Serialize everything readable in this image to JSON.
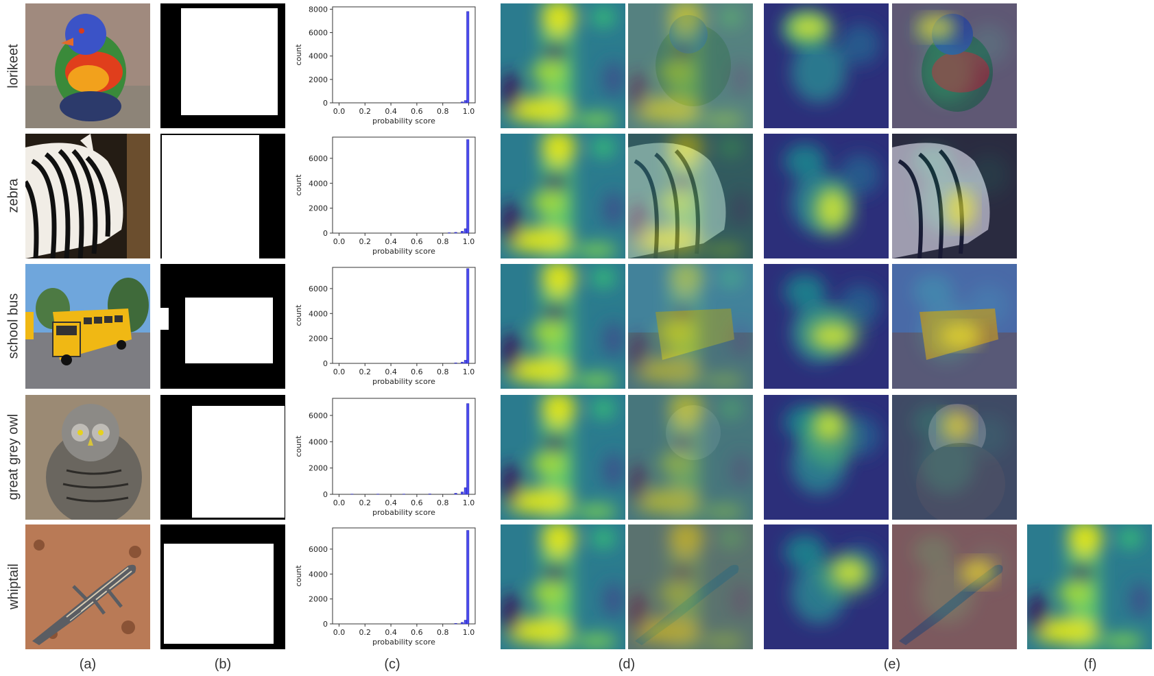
{
  "rows": [
    {
      "label": "lorikeet"
    },
    {
      "label": "zebra"
    },
    {
      "label": "school bus"
    },
    {
      "label": "great grey owl"
    },
    {
      "label": "whiptail"
    }
  ],
  "column_labels": [
    "(a)",
    "(b)",
    "(c)",
    "(d)",
    "(e)",
    "(f)"
  ],
  "chart_data": [
    {
      "type": "bar",
      "xlabel": "probability score",
      "ylabel": "count",
      "xticks": [
        "0.0",
        "0.2",
        "0.4",
        "0.6",
        "0.8",
        "1.0"
      ],
      "yticks": [
        "0",
        "2000",
        "4000",
        "6000",
        "8000"
      ],
      "ylim": [
        0,
        8200
      ],
      "bins": [
        {
          "x": 0.95,
          "value": 80
        },
        {
          "x": 0.975,
          "value": 200
        },
        {
          "x": 0.993,
          "value": 7800
        }
      ]
    },
    {
      "type": "bar",
      "xlabel": "probability score",
      "ylabel": "count",
      "xticks": [
        "0.0",
        "0.2",
        "0.4",
        "0.6",
        "0.8",
        "1.0"
      ],
      "yticks": [
        "0",
        "2000",
        "4000",
        "6000"
      ],
      "ylim": [
        0,
        7700
      ],
      "bins": [
        {
          "x": 0.85,
          "value": 30
        },
        {
          "x": 0.9,
          "value": 60
        },
        {
          "x": 0.95,
          "value": 150
        },
        {
          "x": 0.975,
          "value": 350
        },
        {
          "x": 0.993,
          "value": 7500
        }
      ]
    },
    {
      "type": "bar",
      "xlabel": "probability score",
      "ylabel": "count",
      "xticks": [
        "0.0",
        "0.2",
        "0.4",
        "0.6",
        "0.8",
        "1.0"
      ],
      "yticks": [
        "0",
        "2000",
        "4000",
        "6000"
      ],
      "ylim": [
        0,
        7700
      ],
      "bins": [
        {
          "x": 0.9,
          "value": 40
        },
        {
          "x": 0.95,
          "value": 100
        },
        {
          "x": 0.975,
          "value": 250
        },
        {
          "x": 0.993,
          "value": 7600
        }
      ]
    },
    {
      "type": "bar",
      "xlabel": "probability score",
      "ylabel": "count",
      "xticks": [
        "0.0",
        "0.2",
        "0.4",
        "0.6",
        "0.8",
        "1.0"
      ],
      "yticks": [
        "0",
        "2000",
        "4000",
        "6000"
      ],
      "ylim": [
        0,
        7300
      ],
      "bins": [
        {
          "x": 0.1,
          "value": 20
        },
        {
          "x": 0.3,
          "value": 20
        },
        {
          "x": 0.5,
          "value": 20
        },
        {
          "x": 0.7,
          "value": 30
        },
        {
          "x": 0.9,
          "value": 80
        },
        {
          "x": 0.95,
          "value": 180
        },
        {
          "x": 0.975,
          "value": 500
        },
        {
          "x": 0.993,
          "value": 6900
        }
      ]
    },
    {
      "type": "bar",
      "xlabel": "probability score",
      "ylabel": "count",
      "xticks": [
        "0.0",
        "0.2",
        "0.4",
        "0.6",
        "0.8",
        "1.0"
      ],
      "yticks": [
        "0",
        "2000",
        "4000",
        "6000"
      ],
      "ylim": [
        0,
        7700
      ],
      "bins": [
        {
          "x": 0.9,
          "value": 40
        },
        {
          "x": 0.95,
          "value": 120
        },
        {
          "x": 0.975,
          "value": 300
        },
        {
          "x": 0.993,
          "value": 7500
        }
      ]
    }
  ]
}
